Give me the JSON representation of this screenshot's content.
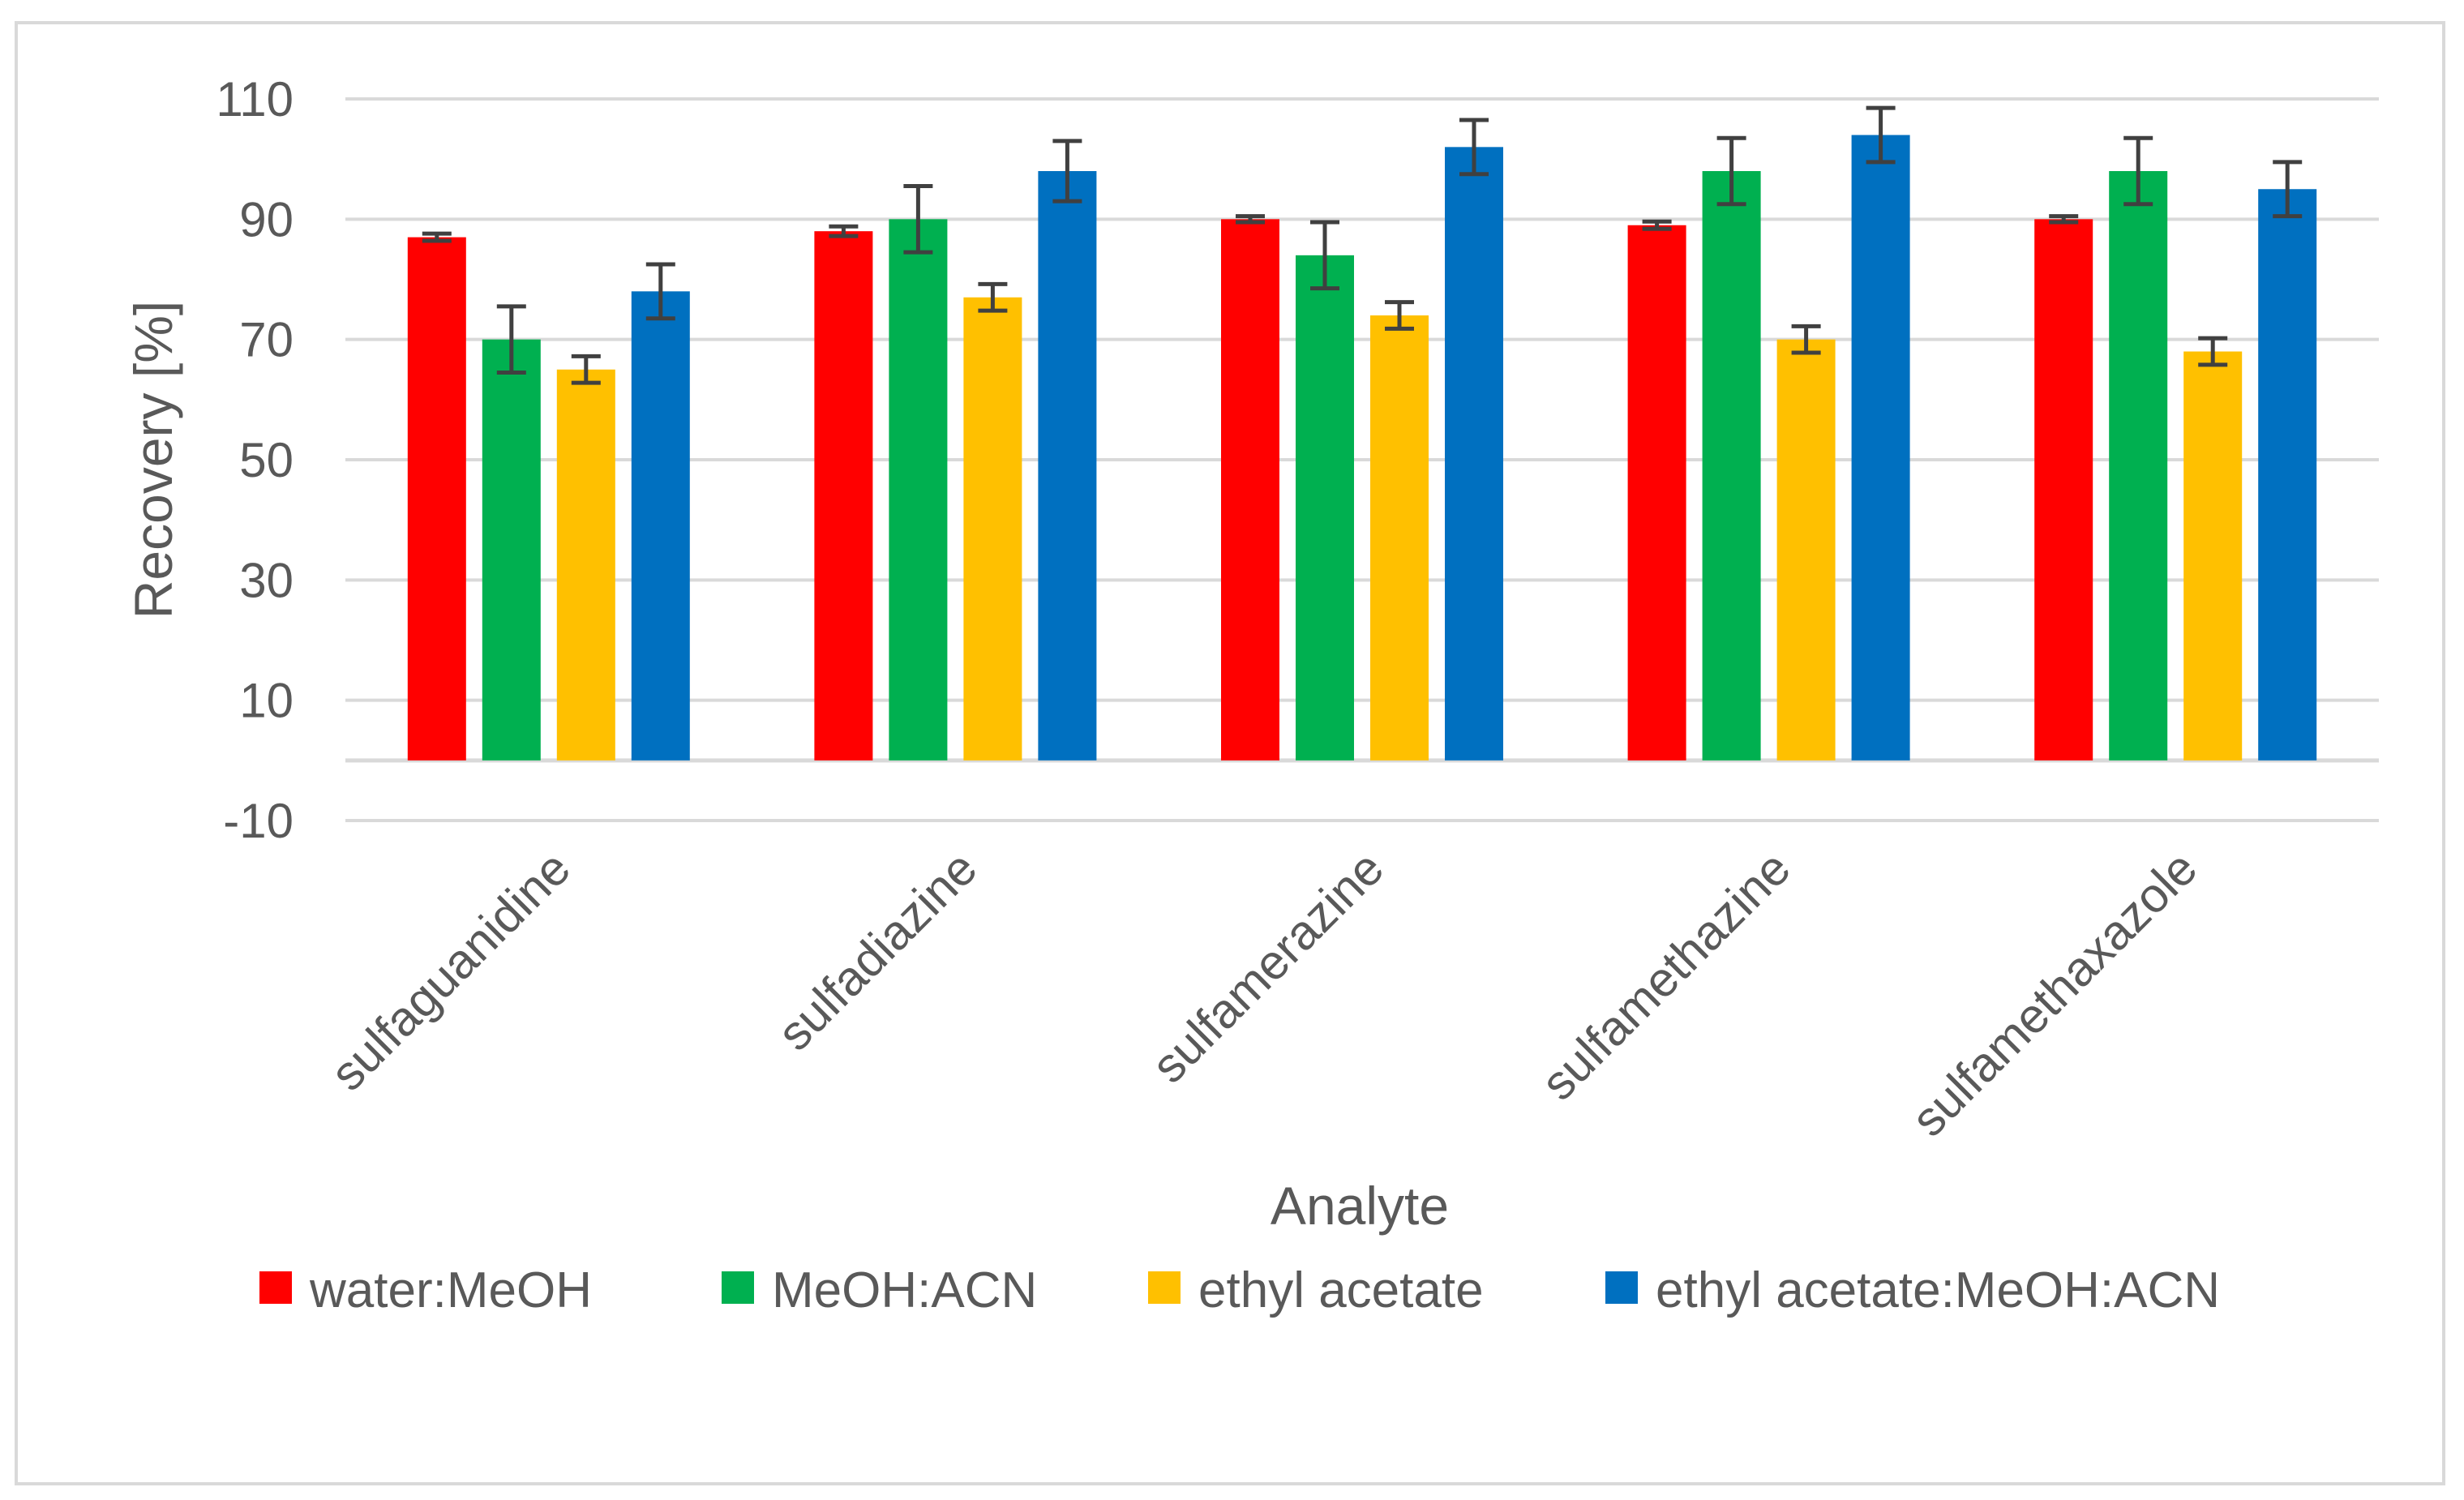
{
  "chart_data": {
    "type": "bar",
    "categories": [
      "sulfaguanidine",
      "sulfadiazine",
      "sulfamerazine",
      "sulfamethazine",
      "sulfamethaxazole"
    ],
    "series": [
      {
        "name": "water:MeOH",
        "color": "#ff0000",
        "values": [
          87,
          88,
          90,
          89,
          90
        ],
        "errors": [
          0.6,
          0.8,
          0.5,
          0.6,
          0.5
        ]
      },
      {
        "name": "MeOH:ACN",
        "color": "#00b050",
        "values": [
          70,
          90,
          84,
          98,
          98
        ],
        "errors": [
          5.5,
          5.5,
          5.5,
          5.5,
          5.5
        ]
      },
      {
        "name": "ethyl acetate",
        "color": "#ffc000",
        "values": [
          65,
          77,
          74,
          70,
          68
        ],
        "errors": [
          2.2,
          2.2,
          2.2,
          2.2,
          2.2
        ]
      },
      {
        "name": "ethyl acetate:MeOH:ACN",
        "color": "#0070c0",
        "values": [
          78,
          98,
          102,
          104,
          95
        ],
        "errors": [
          4.5,
          5.0,
          4.5,
          4.5,
          4.5
        ]
      }
    ],
    "xlabel": "Analyte",
    "ylabel": "Recovery [%]",
    "ylim": [
      -10,
      110
    ],
    "yticks": [
      -10,
      10,
      30,
      50,
      70,
      90,
      110
    ],
    "grid": true,
    "legend_position": "bottom",
    "error_bar_color": "#404040",
    "gridline_color": "#d9d9d9"
  }
}
